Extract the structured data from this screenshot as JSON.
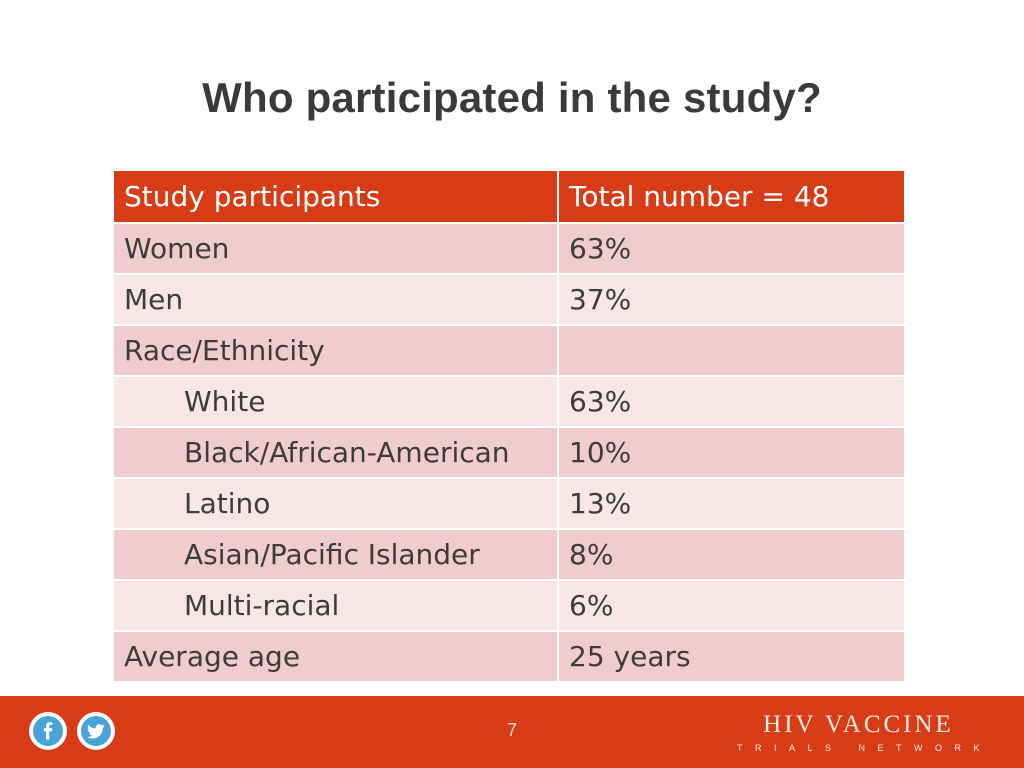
{
  "title": "Who participated in the study?",
  "table": {
    "header": [
      "Study participants",
      "Total number = 48"
    ],
    "rows": [
      {
        "label": "Women",
        "value": "63%"
      },
      {
        "label": "Men",
        "value": "37%"
      },
      {
        "label": "Race/Ethnicity",
        "value": ""
      },
      {
        "label": "White",
        "value": "63%"
      },
      {
        "label": "Black/African-American",
        "value": "10%"
      },
      {
        "label": "Latino",
        "value": "13%"
      },
      {
        "label": "Asian/Pacific Islander",
        "value": "8%"
      },
      {
        "label": "Multi-racial",
        "value": "6%"
      },
      {
        "label": "Average age",
        "value": "25 years"
      }
    ]
  },
  "footer": {
    "page_number": "7",
    "social_icons": [
      "facebook-icon",
      "twitter-icon"
    ],
    "logo_main": "HIV VACCINE",
    "logo_sub": "TRIALS NETWORK"
  },
  "colors": {
    "accent": "#d73c17",
    "row_dark": "#f0cdcc",
    "row_light": "#f8e6e6",
    "social_icon": "#4aa3d6"
  }
}
